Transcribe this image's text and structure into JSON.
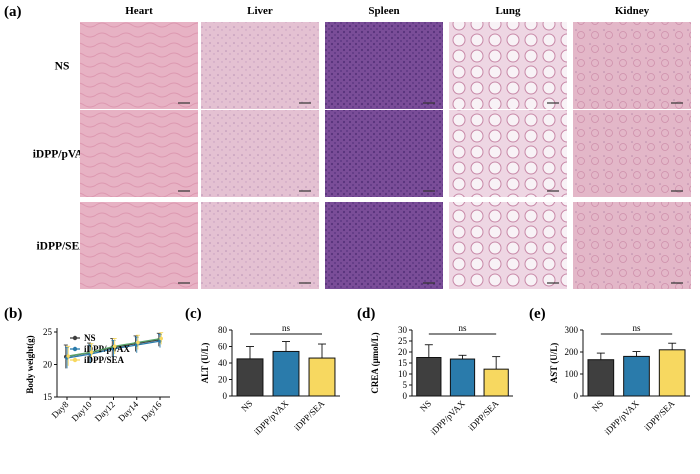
{
  "panel_labels": {
    "a": "(a)",
    "b": "(b)",
    "c": "(c)",
    "d": "(d)",
    "e": "(e)"
  },
  "histology": {
    "columns": [
      "Heart",
      "Liver",
      "Spleen",
      "Lung",
      "Kidney"
    ],
    "rows": [
      "NS",
      "iDPP/pVAX",
      "iDPP/SEA"
    ],
    "tile_colors": {
      "Heart": "#e7b2c4",
      "Liver": "#e4c1d2",
      "Spleen": "#7a4d98",
      "Lung": "#eed6e3",
      "Kidney": "#e3b7c8"
    }
  },
  "colors": {
    "NS": "#3f3f3f",
    "iDPP/pVAX": "#2a7bab",
    "iDPP/SEA": "#f7d860",
    "line_green": "#5aa46a"
  },
  "chart_data": [
    {
      "id": "b",
      "type": "line",
      "ylabel": "Body weight(g)",
      "categories": [
        "Day8",
        "Day10",
        "Day12",
        "Day14",
        "Day16"
      ],
      "ylim": [
        15,
        25
      ],
      "yticks": [
        15,
        20,
        25
      ],
      "series": [
        {
          "name": "NS",
          "values": [
            21.2,
            21.8,
            22.6,
            23.2,
            23.8
          ],
          "errors": [
            1.8,
            1.5,
            1.4,
            1.2,
            1.0
          ]
        },
        {
          "name": "iDPP/pVAX",
          "values": [
            21.0,
            21.6,
            22.4,
            23.0,
            23.6
          ],
          "errors": [
            1.6,
            1.4,
            1.3,
            1.2,
            1.0
          ]
        },
        {
          "name": "iDPP/SEA",
          "values": [
            21.3,
            21.9,
            22.8,
            23.4,
            24.0
          ],
          "errors": [
            1.5,
            1.3,
            1.2,
            1.1,
            0.9
          ]
        }
      ]
    },
    {
      "id": "c",
      "type": "bar",
      "ylabel": "ALT (U/L)",
      "categories": [
        "NS",
        "iDPP/pVAX",
        "iDPP/SEA"
      ],
      "values": [
        45,
        54,
        46
      ],
      "errors": [
        15,
        12,
        17
      ],
      "ylim": [
        0,
        80
      ],
      "yticks": [
        0,
        20,
        40,
        60,
        80
      ],
      "annotation": "ns"
    },
    {
      "id": "d",
      "type": "bar",
      "ylabel": "CREA (μmol/L)",
      "categories": [
        "NS",
        "iDPP/pVAX",
        "iDPP/SEA"
      ],
      "values": [
        17.5,
        16.8,
        12.2
      ],
      "errors": [
        5.8,
        1.7,
        5.7
      ],
      "ylim": [
        0,
        30
      ],
      "yticks": [
        0,
        5,
        10,
        15,
        20,
        25,
        30
      ],
      "annotation": "ns"
    },
    {
      "id": "e",
      "type": "bar",
      "ylabel": "AST (U/L)",
      "categories": [
        "NS",
        "iDPP/pVAX",
        "iDPP/SEA"
      ],
      "values": [
        165,
        180,
        210
      ],
      "errors": [
        30,
        22,
        30
      ],
      "ylim": [
        0,
        300
      ],
      "yticks": [
        0,
        100,
        200,
        300
      ],
      "annotation": "ns"
    }
  ]
}
